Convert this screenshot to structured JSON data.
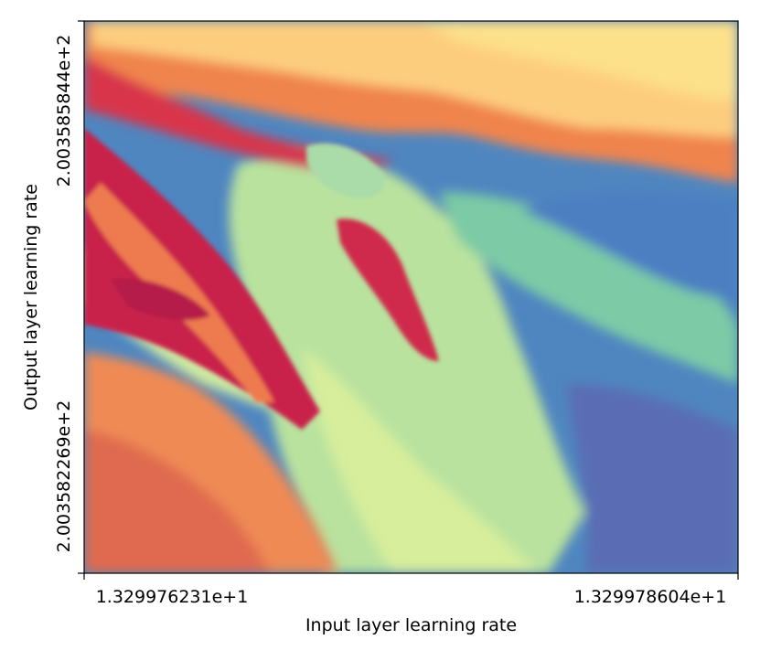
{
  "chart_data": {
    "type": "heatmap",
    "title": "",
    "xlabel": "Input layer learning rate",
    "ylabel": "Output layer learning rate",
    "x_ticks": [
      "1.329976231e+1",
      "1.329978604e+1"
    ],
    "y_ticks": [
      "2.003582269e+2",
      "2.003585844e+2"
    ],
    "xlim": [
      13.29976231,
      13.29978604
    ],
    "ylim": [
      200.3582269,
      200.3585844
    ],
    "colormap": "Spectral",
    "grid": false,
    "legend": "none",
    "colors": {
      "dark_red": "#c8204a",
      "orange": "#f08c50",
      "light_orange": "#fdc97a",
      "pale_yellow": "#fee08b",
      "light_green": "#d8ef9a",
      "teal": "#6ac3a8",
      "blue": "#4d7fc0",
      "indigo": "#5e4fa2"
    }
  }
}
